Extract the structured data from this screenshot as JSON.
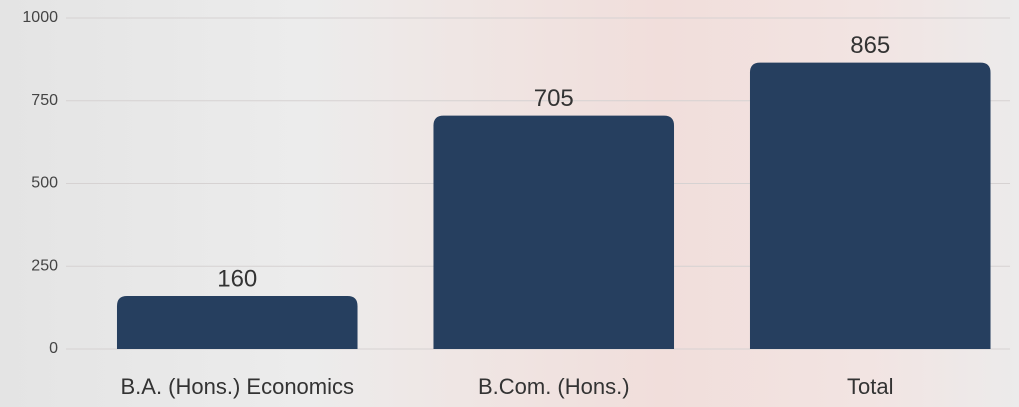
{
  "chart_data": {
    "type": "bar",
    "categories": [
      "B.A. (Hons.) Economics",
      "B.Com. (Hons.)",
      "Total"
    ],
    "values": [
      160,
      705,
      865
    ],
    "color": "#263f5f",
    "ylim": [
      0,
      1000
    ],
    "yticks": [
      0,
      250,
      500,
      750,
      1000
    ],
    "grid": true
  }
}
